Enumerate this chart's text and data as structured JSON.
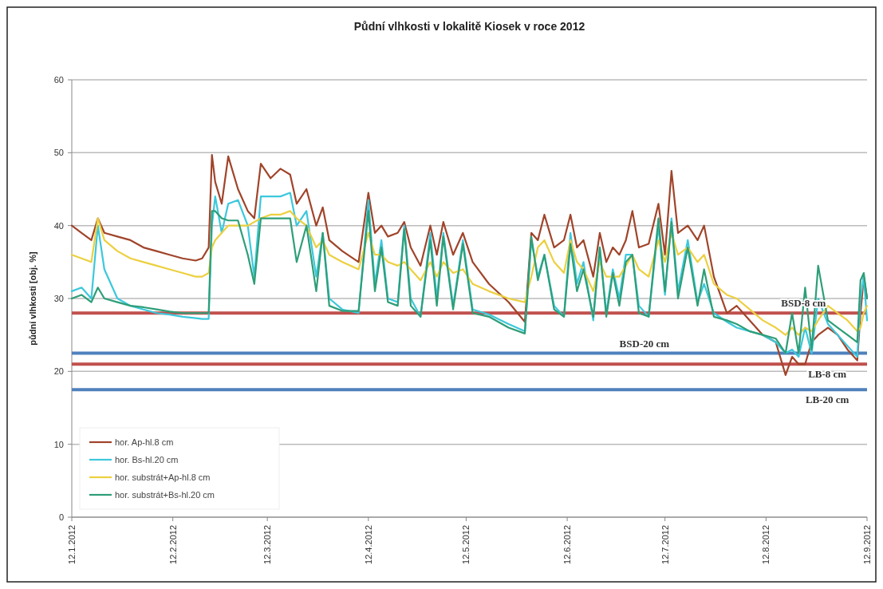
{
  "chart_data": {
    "type": "line",
    "title": "Půdní vlhkosti v lokalitě Kiosek v roce 2012",
    "ylabel": "půdní vlhkosti [obj. %]",
    "x": [
      "2012-01-12",
      "2012-01-15",
      "2012-01-18",
      "2012-01-20",
      "2012-01-22",
      "2012-01-26",
      "2012-01-30",
      "2012-02-03",
      "2012-02-07",
      "2012-02-11",
      "2012-02-15",
      "2012-02-19",
      "2012-02-21",
      "2012-02-23",
      "2012-02-24",
      "2012-02-25",
      "2012-02-27",
      "2012-02-29",
      "2012-03-03",
      "2012-03-06",
      "2012-03-08",
      "2012-03-10",
      "2012-03-13",
      "2012-03-16",
      "2012-03-19",
      "2012-03-21",
      "2012-03-24",
      "2012-03-27",
      "2012-03-29",
      "2012-03-31",
      "2012-04-04",
      "2012-04-09",
      "2012-04-12",
      "2012-04-14",
      "2012-04-16",
      "2012-04-18",
      "2012-04-21",
      "2012-04-23",
      "2012-04-25",
      "2012-04-28",
      "2012-05-01",
      "2012-05-03",
      "2012-05-05",
      "2012-05-08",
      "2012-05-11",
      "2012-05-14",
      "2012-05-19",
      "2012-05-25",
      "2012-05-30",
      "2012-06-01",
      "2012-06-03",
      "2012-06-05",
      "2012-06-08",
      "2012-06-11",
      "2012-06-13",
      "2012-06-15",
      "2012-06-17",
      "2012-06-20",
      "2012-06-22",
      "2012-06-24",
      "2012-06-26",
      "2012-06-28",
      "2012-06-30",
      "2012-07-02",
      "2012-07-04",
      "2012-07-07",
      "2012-07-10",
      "2012-07-12",
      "2012-07-14",
      "2012-07-16",
      "2012-07-19",
      "2012-07-22",
      "2012-07-24",
      "2012-07-27",
      "2012-07-31",
      "2012-08-03",
      "2012-08-07",
      "2012-08-11",
      "2012-08-15",
      "2012-08-18",
      "2012-08-20",
      "2012-08-22",
      "2012-08-24",
      "2012-08-26",
      "2012-08-28",
      "2012-08-31",
      "2012-09-03",
      "2012-09-06",
      "2012-09-09",
      "2012-09-10",
      "2012-09-11",
      "2012-09-12"
    ],
    "series": [
      {
        "name": "hor. Ap-hl.8 cm",
        "color": "#a0442a",
        "values": [
          40,
          39,
          38,
          41,
          39,
          38.5,
          38,
          37,
          36.5,
          36,
          35.5,
          35.2,
          35.5,
          37,
          49.7,
          46,
          43,
          49.5,
          45,
          42,
          41,
          48.5,
          46.5,
          47.8,
          47,
          43,
          45,
          40,
          42.5,
          38,
          36.5,
          35,
          44.5,
          39,
          40,
          38.5,
          39,
          40.5,
          37,
          34.5,
          40,
          36,
          40.5,
          36,
          39,
          35,
          32,
          29.5,
          26.8,
          39,
          38,
          41.5,
          37,
          38,
          41.5,
          37,
          38,
          33,
          39,
          35,
          37,
          36,
          38,
          42,
          37,
          37.5,
          43,
          36,
          47.5,
          39,
          40,
          38,
          40,
          33,
          28,
          29,
          27,
          25,
          24,
          19.5,
          22,
          21,
          21,
          24,
          25,
          26,
          25,
          23,
          21.5,
          28,
          33,
          30
        ]
      },
      {
        "name": "hor. Bs-hl.20 cm",
        "color": "#3cc8dc",
        "values": [
          31,
          31.5,
          30,
          40,
          34,
          30,
          29,
          28.5,
          28,
          27.8,
          27.5,
          27.3,
          27.2,
          27.2,
          40,
          44,
          39,
          43,
          43.5,
          40,
          33,
          44,
          44,
          44,
          44.5,
          40,
          42,
          33,
          39,
          30,
          28.5,
          28,
          43.5,
          32,
          38,
          30,
          29.5,
          40,
          30,
          27.5,
          39,
          30,
          39,
          29,
          38,
          28.5,
          27.8,
          26.5,
          25.5,
          38,
          33,
          36,
          29,
          27.5,
          39,
          32,
          35,
          27,
          37,
          28,
          34,
          30,
          36,
          36,
          29,
          27.5,
          40,
          30.5,
          41,
          31,
          38,
          29.5,
          32,
          28,
          26.8,
          26,
          25.5,
          25,
          24,
          22.5,
          23,
          22,
          26,
          22.5,
          30,
          26.5,
          25,
          23.5,
          22,
          30,
          33,
          27
        ]
      },
      {
        "name": "hor. substrát+Ap-hl.8 cm",
        "color": "#ecd040",
        "values": [
          36,
          35.5,
          35,
          41,
          38,
          36.5,
          35.5,
          35,
          34.5,
          34,
          33.5,
          33,
          33,
          33.5,
          37,
          38,
          39,
          40,
          40,
          40,
          40.5,
          41,
          41.5,
          41.5,
          42,
          41,
          40,
          37,
          38,
          36,
          35,
          34,
          39,
          36,
          36,
          35,
          34.5,
          35,
          34,
          32.5,
          35,
          33,
          35,
          33.5,
          34,
          32,
          31,
          30,
          29.5,
          33,
          37,
          38,
          35,
          33.5,
          38,
          35,
          34,
          31,
          35,
          33,
          33,
          33,
          34.5,
          36,
          34,
          33,
          38,
          35,
          39,
          36,
          37,
          35,
          36,
          32,
          30.5,
          30,
          28.5,
          27,
          26,
          25,
          26,
          25,
          26,
          25.5,
          27,
          29,
          28,
          27,
          25.5,
          26,
          28,
          29
        ]
      },
      {
        "name": "hor. substrát+Bs-hl.20 cm",
        "color": "#2e9e78",
        "values": [
          30,
          30.5,
          29.5,
          31.5,
          30,
          29.5,
          29,
          28.8,
          28.5,
          28.2,
          28,
          28,
          28,
          28,
          42,
          42,
          41,
          40.7,
          40.7,
          36,
          32,
          41,
          41,
          41,
          41,
          35,
          40,
          31,
          39,
          29,
          28.3,
          28.3,
          42,
          31,
          37,
          29.5,
          29,
          39.5,
          29,
          27.5,
          38,
          29,
          38.5,
          28.5,
          37.5,
          28,
          27.5,
          26,
          25.2,
          38.5,
          32.5,
          36,
          28.5,
          27.5,
          37.5,
          31,
          34,
          27.5,
          37,
          27.5,
          33.5,
          29,
          35,
          36,
          28,
          27.5,
          41,
          31,
          40.5,
          30,
          37,
          29,
          34,
          27.5,
          27,
          26.5,
          25.5,
          25,
          24.5,
          22.5,
          28,
          22.5,
          31.5,
          23,
          34.5,
          27,
          26,
          25,
          24,
          32.5,
          33.5,
          30
        ]
      }
    ],
    "xticks": [
      {
        "value": "2012-01-12",
        "label": "12.1.2012"
      },
      {
        "value": "2012-02-12",
        "label": "12.2.2012"
      },
      {
        "value": "2012-03-12",
        "label": "12.3.2012"
      },
      {
        "value": "2012-04-12",
        "label": "12.4.2012"
      },
      {
        "value": "2012-05-12",
        "label": "12.5.2012"
      },
      {
        "value": "2012-06-12",
        "label": "12.6.2012"
      },
      {
        "value": "2012-07-12",
        "label": "12.7.2012"
      },
      {
        "value": "2012-08-12",
        "label": "12.8.2012"
      },
      {
        "value": "2012-09-12",
        "label": "12.9.2012"
      }
    ],
    "xlim": [
      "2012-01-12",
      "2012-09-12"
    ],
    "ylim": [
      0,
      60
    ],
    "yticks": [
      0,
      10,
      20,
      30,
      40,
      50,
      60
    ],
    "grid": "y",
    "legend": "bottom left",
    "marker": "none",
    "line_style": "solid",
    "ref_lines": [
      {
        "axis": "y",
        "value": 28,
        "label": "BSD-8 cm",
        "color": "#c0504d"
      },
      {
        "axis": "y",
        "value": 22.5,
        "label": "BSD-20 cm",
        "color": "#4f81bd"
      },
      {
        "axis": "y",
        "value": 21,
        "label": "LB-8 cm",
        "color": "#c0504d"
      },
      {
        "axis": "y",
        "value": 17.5,
        "label": "LB-20 cm",
        "color": "#4f81bd"
      }
    ]
  }
}
